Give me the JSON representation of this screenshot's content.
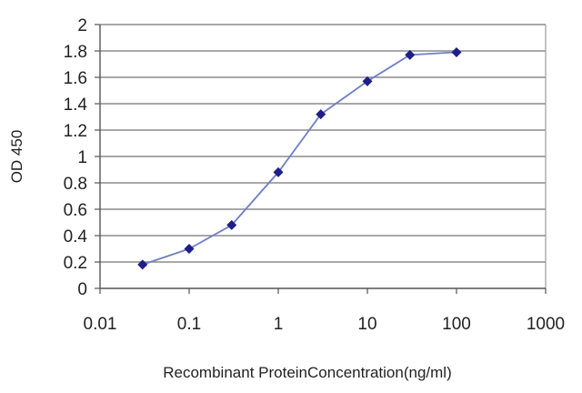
{
  "chart_data": {
    "type": "line",
    "xscale": "log",
    "x": [
      0.03,
      0.1,
      0.3,
      1,
      3,
      10,
      30,
      100
    ],
    "series": [
      {
        "values": [
          0.18,
          0.3,
          0.48,
          0.88,
          1.32,
          1.57,
          1.77,
          1.79
        ]
      }
    ],
    "xlabel": "Recombinant ProteinConcentration(ng/ml)",
    "ylabel": "OD 450",
    "xlim": [
      0.01,
      1000
    ],
    "ylim": [
      0,
      2
    ],
    "xticks": [
      "0.01",
      "0.1",
      "1",
      "10",
      "100",
      "1000"
    ],
    "yticks": [
      "0",
      "0.2",
      "0.4",
      "0.6",
      "0.8",
      "1",
      "1.2",
      "1.4",
      "1.6",
      "1.8",
      "2"
    ],
    "grid": "horizontal",
    "legend": "none",
    "colors": {
      "line": "#6f7fc4",
      "marker": "#1e1e8a",
      "grid": "#8c8c8c",
      "axis": "#555555",
      "plot_border": "#999999"
    }
  }
}
